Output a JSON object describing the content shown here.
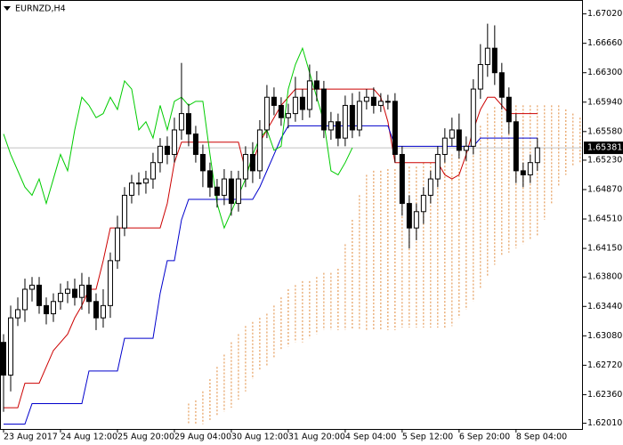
{
  "chart_data": {
    "type": "candlestick",
    "title": "EURNZD,H4",
    "open": [
      1.63,
      1.626,
      1.633,
      1.634,
      1.6365,
      1.637,
      1.6345,
      1.6335,
      1.635,
      1.636,
      1.6365,
      1.6355,
      1.637,
      1.635,
      1.633,
      1.6345,
      1.64,
      1.644,
      1.648,
      1.6495,
      1.6495,
      1.65,
      1.652,
      1.654,
      1.653,
      1.656,
      1.658,
      1.6555,
      1.653,
      1.651,
      1.649,
      1.648,
      1.65,
      1.647,
      1.65,
      1.653,
      1.651,
      1.656,
      1.66,
      1.659,
      1.6575,
      1.658,
      1.66,
      1.6585,
      1.662,
      1.661,
      1.656,
      1.657,
      1.655,
      1.659,
      1.656,
      1.6595,
      1.66,
      1.659,
      1.6595,
      1.6595,
      1.653,
      1.647,
      1.644,
      1.646,
      1.648,
      1.65,
      1.653,
      1.655,
      1.656,
      1.6535,
      1.654,
      1.661,
      1.664,
      1.666,
      1.663,
      1.66,
      1.657,
      1.651,
      1.6505,
      1.652
    ],
    "high": [
      1.631,
      1.6345,
      1.6355,
      1.6378,
      1.638,
      1.638,
      1.6355,
      1.636,
      1.6372,
      1.6375,
      1.6378,
      1.6385,
      1.638,
      1.636,
      1.6365,
      1.641,
      1.6455,
      1.649,
      1.6505,
      1.6508,
      1.651,
      1.6532,
      1.655,
      1.6552,
      1.6575,
      1.6642,
      1.6592,
      1.6565,
      1.6542,
      1.652,
      1.65,
      1.6512,
      1.651,
      1.651,
      1.654,
      1.6545,
      1.6572,
      1.6615,
      1.6612,
      1.66,
      1.6592,
      1.6625,
      1.661,
      1.664,
      1.6632,
      1.662,
      1.6582,
      1.658,
      1.6602,
      1.6605,
      1.6607,
      1.661,
      1.6612,
      1.6605,
      1.6603,
      1.6605,
      1.654,
      1.648,
      1.647,
      1.649,
      1.651,
      1.654,
      1.6562,
      1.6575,
      1.658,
      1.6552,
      1.6622,
      1.6665,
      1.669,
      1.6688,
      1.6642,
      1.6612,
      1.658,
      1.652,
      1.653,
      1.655
    ],
    "low": [
      1.6215,
      1.624,
      1.632,
      1.6325,
      1.635,
      1.6335,
      1.6322,
      1.6325,
      1.634,
      1.6348,
      1.6345,
      1.634,
      1.6335,
      1.6315,
      1.6318,
      1.633,
      1.639,
      1.643,
      1.647,
      1.648,
      1.6482,
      1.6488,
      1.6508,
      1.6518,
      1.652,
      1.6548,
      1.654,
      1.652,
      1.649,
      1.6478,
      1.6465,
      1.6468,
      1.6455,
      1.646,
      1.649,
      1.6495,
      1.65,
      1.655,
      1.6578,
      1.6565,
      1.6562,
      1.657,
      1.6572,
      1.6575,
      1.6595,
      1.655,
      1.6548,
      1.654,
      1.654,
      1.655,
      1.6552,
      1.6585,
      1.658,
      1.6582,
      1.6585,
      1.652,
      1.6455,
      1.6415,
      1.6425,
      1.6445,
      1.647,
      1.649,
      1.652,
      1.654,
      1.6525,
      1.6522,
      1.653,
      1.6598,
      1.6625,
      1.6615,
      1.6585,
      1.6555,
      1.6495,
      1.649,
      1.6495,
      1.651
    ],
    "close": [
      1.626,
      1.633,
      1.634,
      1.6365,
      1.637,
      1.6345,
      1.6335,
      1.635,
      1.636,
      1.6365,
      1.6355,
      1.637,
      1.635,
      1.633,
      1.6345,
      1.64,
      1.644,
      1.648,
      1.6495,
      1.6495,
      1.65,
      1.652,
      1.654,
      1.653,
      1.656,
      1.658,
      1.6555,
      1.653,
      1.651,
      1.649,
      1.648,
      1.65,
      1.647,
      1.65,
      1.653,
      1.651,
      1.656,
      1.66,
      1.659,
      1.6575,
      1.658,
      1.66,
      1.6585,
      1.662,
      1.661,
      1.656,
      1.657,
      1.655,
      1.659,
      1.656,
      1.6595,
      1.66,
      1.659,
      1.6595,
      1.6595,
      1.653,
      1.647,
      1.644,
      1.646,
      1.648,
      1.65,
      1.653,
      1.655,
      1.656,
      1.6535,
      1.654,
      1.661,
      1.664,
      1.666,
      1.663,
      1.66,
      1.657,
      1.651,
      1.6505,
      1.652,
      1.65381
    ],
    "bull_color": "#ffffff",
    "bear_color": "#000000",
    "lines": [
      {
        "color": "#cc0000",
        "values": [
          1.622,
          1.622,
          1.622,
          1.625,
          1.625,
          1.625,
          1.627,
          1.629,
          1.63,
          1.631,
          1.633,
          1.6345,
          1.6365,
          1.6365,
          1.64,
          1.644,
          1.644,
          1.644,
          1.644,
          1.644,
          1.644,
          1.644,
          1.644,
          1.647,
          1.652,
          1.6545,
          1.6545,
          1.6545,
          1.6545,
          1.6545,
          1.6545,
          1.6545,
          1.6545,
          1.6545,
          1.651,
          1.652,
          1.6545,
          1.656,
          1.6575,
          1.659,
          1.66,
          1.661,
          1.661,
          1.661,
          1.661,
          1.661,
          1.661,
          1.661,
          1.661,
          1.661,
          1.661,
          1.661,
          1.661,
          1.66,
          1.657,
          1.652,
          1.652,
          1.652,
          1.652,
          1.652,
          1.652,
          1.652,
          1.6505,
          1.65,
          1.6505,
          1.653,
          1.656,
          1.6585,
          1.66,
          1.66,
          1.659,
          1.658,
          1.658,
          1.658,
          1.658,
          1.658
        ]
      },
      {
        "color": "#0000cc",
        "values": [
          1.62,
          1.62,
          1.62,
          1.62,
          1.6225,
          1.6225,
          1.6225,
          1.6225,
          1.6225,
          1.6225,
          1.6225,
          1.6225,
          1.6265,
          1.6265,
          1.6265,
          1.6265,
          1.6265,
          1.6305,
          1.6305,
          1.6305,
          1.6305,
          1.6305,
          1.636,
          1.64,
          1.64,
          1.645,
          1.6475,
          1.6475,
          1.6475,
          1.6475,
          1.6475,
          1.6475,
          1.6475,
          1.6475,
          1.6475,
          1.6475,
          1.649,
          1.651,
          1.653,
          1.655,
          1.6565,
          1.6565,
          1.6565,
          1.6565,
          1.6565,
          1.6565,
          1.6565,
          1.6565,
          1.6565,
          1.6565,
          1.6565,
          1.6565,
          1.6565,
          1.6565,
          1.6565,
          1.654,
          1.654,
          1.654,
          1.654,
          1.654,
          1.654,
          1.654,
          1.654,
          1.654,
          1.654,
          1.654,
          1.654,
          1.655,
          1.655,
          1.655,
          1.655,
          1.655,
          1.655,
          1.655,
          1.655,
          1.655
        ]
      },
      {
        "color": "#00cc00",
        "values": [
          1.6555,
          1.653,
          1.651,
          1.649,
          1.648,
          1.65,
          1.647,
          1.65,
          1.653,
          1.651,
          1.656,
          1.66,
          1.659,
          1.6575,
          1.658,
          1.66,
          1.6585,
          1.662,
          1.661,
          1.656,
          1.657,
          1.655,
          1.659,
          1.656,
          1.6595,
          1.66,
          1.659,
          1.6595,
          1.6595,
          1.653,
          1.647,
          1.644,
          1.646,
          1.648,
          1.65,
          1.653,
          1.655,
          1.656,
          1.6535,
          1.654,
          1.661,
          1.664,
          1.666,
          1.663,
          1.66,
          1.657,
          1.651,
          1.6505,
          1.652,
          1.65381,
          null,
          null,
          null,
          null,
          null,
          null,
          null,
          null,
          null,
          null,
          null,
          null,
          null,
          null,
          null,
          null,
          null,
          null,
          null,
          null,
          null,
          null,
          null,
          null,
          null,
          null
        ]
      }
    ],
    "cloud": {
      "color": "#e0893a",
      "upper": [
        null,
        null,
        null,
        null,
        null,
        null,
        null,
        null,
        null,
        null,
        null,
        null,
        null,
        null,
        null,
        null,
        null,
        null,
        null,
        null,
        null,
        null,
        null,
        null,
        null,
        null,
        1.6225,
        1.6229,
        1.624,
        1.6255,
        1.627,
        1.6285,
        1.63,
        1.631,
        1.632,
        1.6325,
        1.633,
        1.6335,
        1.6345,
        1.6355,
        1.6365,
        1.637,
        1.6375,
        1.6375,
        1.638,
        1.6385,
        1.6385,
        1.639,
        1.642,
        1.645,
        1.648,
        1.6505,
        1.651,
        1.651,
        1.6512,
        1.6512,
        1.6515,
        1.6515,
        1.6515,
        1.652,
        1.652,
        1.652,
        1.6525,
        1.653,
        1.6535,
        1.6545,
        1.6555,
        1.6565,
        1.658,
        1.6588,
        1.6588,
        1.659,
        1.659,
        1.659,
        1.659,
        1.659,
        1.659,
        1.659,
        1.659,
        1.6585,
        1.658,
        1.6575
      ],
      "lower": [
        null,
        null,
        null,
        null,
        null,
        null,
        null,
        null,
        null,
        null,
        null,
        null,
        null,
        null,
        null,
        null,
        null,
        null,
        null,
        null,
        null,
        null,
        null,
        null,
        null,
        null,
        1.62,
        1.62,
        1.62,
        1.6205,
        1.621,
        1.6215,
        1.622,
        1.623,
        1.624,
        1.6255,
        1.6265,
        1.627,
        1.628,
        1.629,
        1.6295,
        1.63,
        1.63,
        1.6305,
        1.631,
        1.6315,
        1.6315,
        1.6315,
        1.6315,
        1.6315,
        1.6315,
        1.6315,
        1.6315,
        1.6315,
        1.6315,
        1.6315,
        1.6318,
        1.6318,
        1.6318,
        1.6318,
        1.6318,
        1.6318,
        1.6318,
        1.632,
        1.633,
        1.634,
        1.635,
        1.6365,
        1.638,
        1.6395,
        1.6405,
        1.641,
        1.6415,
        1.642,
        1.6425,
        1.643,
        1.645,
        1.647,
        1.649,
        1.6505,
        1.6515,
        1.652
      ]
    },
    "current_price": 1.65381,
    "xlim": [
      -0.5,
      81.4
    ],
    "xticks": [
      {
        "value": 0,
        "label": "23 Aug 2017"
      },
      {
        "value": 8,
        "label": "24 Aug 12:00"
      },
      {
        "value": 16,
        "label": "25 Aug 20:00"
      },
      {
        "value": 24,
        "label": "29 Aug 04:00"
      },
      {
        "value": 32,
        "label": "30 Aug 12:00"
      },
      {
        "value": 40,
        "label": "31 Aug 20:00"
      },
      {
        "value": 48,
        "label": "4 Sep 04:00"
      },
      {
        "value": 56,
        "label": "5 Sep 12:00"
      },
      {
        "value": 64,
        "label": "6 Sep 20:00"
      },
      {
        "value": 72,
        "label": "8 Sep 04:00"
      }
    ],
    "ylim": [
      1.6194,
      1.6719
    ],
    "yticks": [
      {
        "value": 1.6702,
        "label": "1.67020"
      },
      {
        "value": 1.6666,
        "label": "1.66660"
      },
      {
        "value": 1.663,
        "label": "1.66300"
      },
      {
        "value": 1.6594,
        "label": "1.65940"
      },
      {
        "value": 1.6558,
        "label": "1.65580"
      },
      {
        "value": 1.6523,
        "label": "1.65230"
      },
      {
        "value": 1.6487,
        "label": "1.64870"
      },
      {
        "value": 1.6451,
        "label": "1.64510"
      },
      {
        "value": 1.6415,
        "label": "1.64150"
      },
      {
        "value": 1.638,
        "label": "1.63800"
      },
      {
        "value": 1.6344,
        "label": "1.63440"
      },
      {
        "value": 1.6308,
        "label": "1.63080"
      },
      {
        "value": 1.6272,
        "label": "1.62720"
      },
      {
        "value": 1.6236,
        "label": "1.62360"
      },
      {
        "value": 1.6201,
        "label": "1.62010"
      }
    ]
  }
}
